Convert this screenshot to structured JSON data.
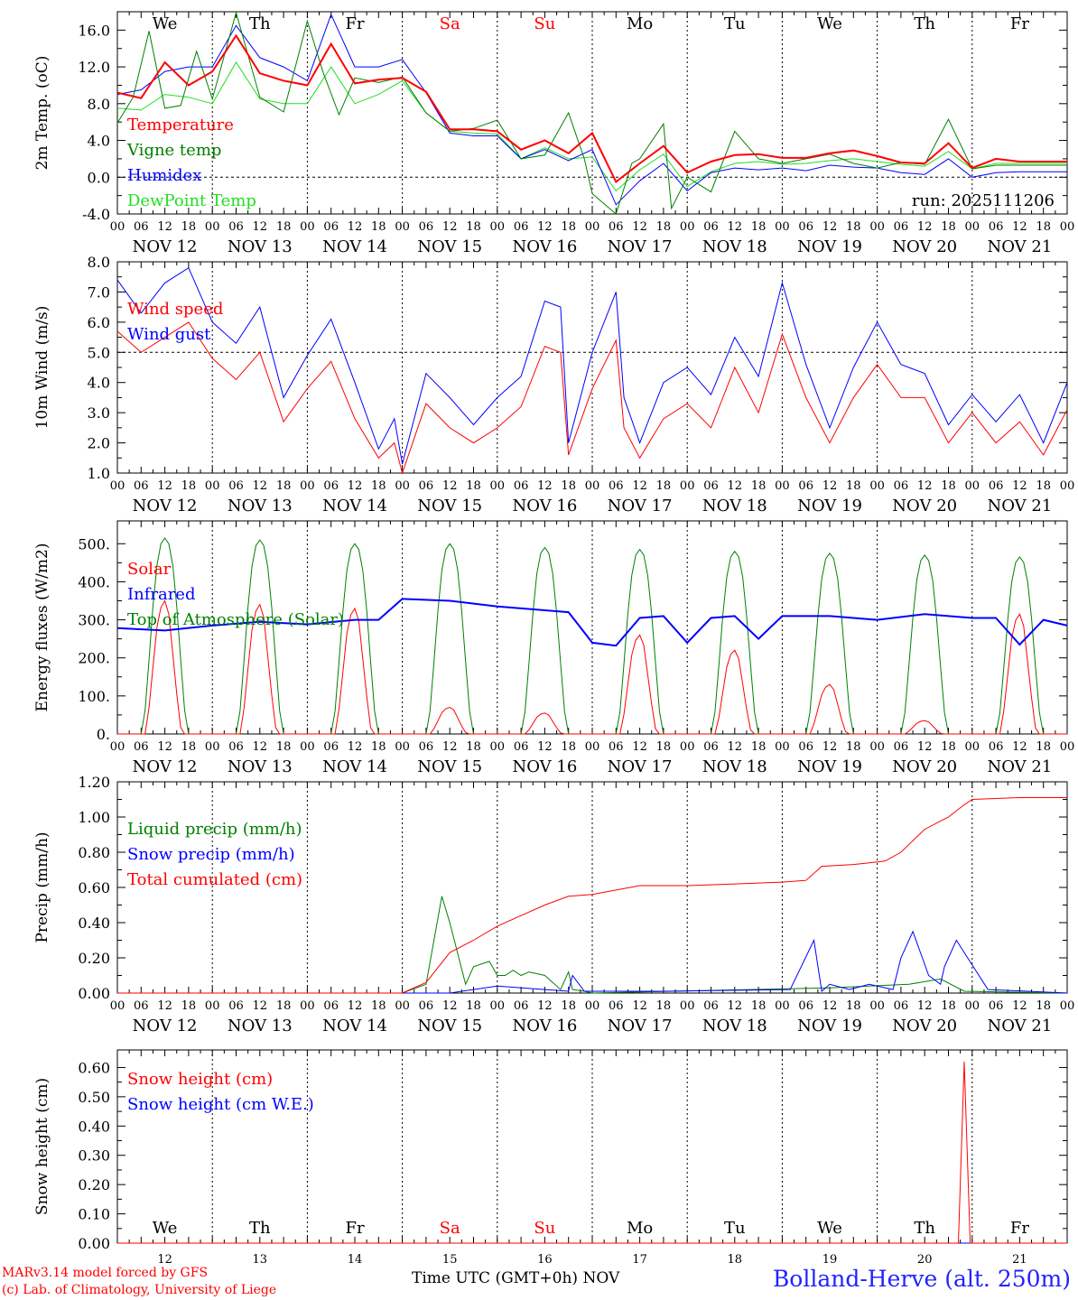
{
  "meta": {
    "run_label": "run: 2025111206",
    "credit_line1": "MARv3.14 model forced by GFS",
    "credit_line2": "(c) Lab. of Climatology, University of Liege",
    "xaxis_title": "Time UTC (GMT+0h)",
    "month_label": "NOV",
    "station": "Bolland-Herve (alt. 250m)"
  },
  "colors": {
    "red": "#ff0000",
    "green": "#008000",
    "blue": "#0000ff",
    "lightgreen": "#22dd22",
    "grid": "#000000"
  },
  "days": [
    "We",
    "Th",
    "Fr",
    "Sa",
    "Su",
    "Mo",
    "Tu",
    "We",
    "Th",
    "Fr"
  ],
  "weekend_days": [
    "Sa",
    "Su"
  ],
  "day_numbers": [
    "12",
    "13",
    "14",
    "15",
    "16",
    "17",
    "18",
    "19",
    "20",
    "21"
  ],
  "date_labels": [
    "NOV 12",
    "NOV 13",
    "NOV 14",
    "NOV 15",
    "NOV 16",
    "NOV 17",
    "NOV 18",
    "NOV 19",
    "NOV 20",
    "NOV 21"
  ],
  "hour_ticks": [
    "00",
    "06",
    "12",
    "18"
  ],
  "chart_data": [
    {
      "type": "line",
      "ylabel": "2m Temp. (oC)",
      "ylim": [
        -4,
        18
      ],
      "yticks": [
        "-4.0",
        "0.0",
        "4.0",
        "8.0",
        "12.0",
        "16.0"
      ],
      "ytick_values": [
        -4,
        0,
        4,
        8,
        12,
        16
      ],
      "dashed_y": 0,
      "series": [
        {
          "name": "Temperature",
          "color": "red",
          "width": 2,
          "t": [
            0,
            6,
            12,
            18,
            24,
            30,
            36,
            42,
            48,
            54,
            60,
            66,
            72,
            78,
            84,
            90,
            96,
            102,
            108,
            114,
            120,
            126,
            132,
            138,
            144,
            150,
            156,
            162,
            168,
            174,
            180,
            186,
            192,
            198,
            204,
            210,
            216,
            222,
            228,
            234,
            240
          ],
          "v": [
            9.2,
            8.6,
            12.5,
            10,
            11.5,
            15.4,
            11.3,
            10.5,
            10,
            14.5,
            10.2,
            10.6,
            10.8,
            9.3,
            5.2,
            5.2,
            5.0,
            3.0,
            4.0,
            2.6,
            4.8,
            -0.5,
            1.5,
            3.4,
            0.5,
            1.7,
            2.4,
            2.5,
            2.1,
            2.1,
            2.6,
            2.9,
            2.3,
            1.6,
            1.5,
            3.7,
            1.0,
            2.0,
            1.7,
            1.7,
            1.7
          ]
        },
        {
          "name": "Vigne temp",
          "color": "green",
          "width": 1,
          "t": [
            0,
            4,
            8,
            12,
            16,
            20,
            24,
            30,
            36,
            42,
            48,
            52,
            56,
            60,
            66,
            72,
            78,
            84,
            90,
            96,
            102,
            108,
            114,
            118,
            120,
            126,
            130,
            132,
            138,
            140,
            144,
            150,
            156,
            162,
            168,
            174,
            180,
            186,
            192,
            198,
            204,
            210,
            216,
            222,
            228,
            234,
            240
          ],
          "v": [
            5.9,
            8.7,
            15.9,
            7.5,
            7.8,
            13.7,
            8.5,
            17.9,
            8.7,
            7.1,
            17.0,
            11.4,
            6.8,
            10.8,
            10.3,
            10.9,
            7.0,
            5.0,
            5.3,
            6.2,
            2.0,
            2.4,
            7.0,
            2.0,
            -1.8,
            -4.0,
            1.5,
            2.0,
            5.8,
            -3.4,
            0.0,
            -1.6,
            5.0,
            2.0,
            1.5,
            2.0,
            2.5,
            1.5,
            1.0,
            1.6,
            1.4,
            6.3,
            0.9,
            1.3,
            1.3,
            1.3,
            1.3
          ]
        },
        {
          "name": "Humidex",
          "color": "blue",
          "width": 1,
          "t": [
            0,
            6,
            12,
            18,
            24,
            30,
            36,
            42,
            48,
            54,
            60,
            66,
            72,
            78,
            84,
            90,
            96,
            102,
            108,
            114,
            120,
            126,
            132,
            138,
            144,
            150,
            156,
            162,
            168,
            174,
            180,
            186,
            192,
            198,
            204,
            210,
            216,
            222,
            228,
            234,
            240
          ],
          "v": [
            9.0,
            9.5,
            11.5,
            12.0,
            12.0,
            16.5,
            13.0,
            12.0,
            10.5,
            17.7,
            12.0,
            12.0,
            12.8,
            9.2,
            4.8,
            4.5,
            4.5,
            2.0,
            3.0,
            1.8,
            3.0,
            -3.0,
            -0.4,
            1.5,
            -1.5,
            0.5,
            1.0,
            0.8,
            1.0,
            0.7,
            1.3,
            1.1,
            1.0,
            0.5,
            0.3,
            2.0,
            0.0,
            0.5,
            0.6,
            0.6,
            0.6
          ]
        },
        {
          "name": "DewPoint Temp",
          "color": "lightgreen",
          "width": 1,
          "t": [
            0,
            6,
            12,
            18,
            24,
            30,
            36,
            42,
            48,
            54,
            60,
            66,
            72,
            78,
            84,
            90,
            96,
            102,
            108,
            114,
            120,
            126,
            132,
            138,
            144,
            150,
            156,
            162,
            168,
            174,
            180,
            186,
            192,
            198,
            204,
            210,
            216,
            222,
            228,
            234,
            240
          ],
          "v": [
            7.5,
            7.3,
            9.0,
            8.7,
            8.0,
            12.5,
            8.5,
            8.0,
            8.0,
            12.0,
            8.0,
            9.0,
            10.5,
            7.0,
            5.0,
            4.8,
            4.7,
            2.0,
            3.2,
            2.0,
            2.2,
            -1.5,
            0.8,
            2.5,
            -1.0,
            0.6,
            1.5,
            1.7,
            1.4,
            1.5,
            1.8,
            2.0,
            1.7,
            1.4,
            1.2,
            2.8,
            0.9,
            1.5,
            1.5,
            1.5,
            1.5
          ]
        }
      ]
    },
    {
      "type": "line",
      "ylabel": "10m Wind (m/s)",
      "ylim": [
        1,
        8
      ],
      "yticks": [
        "1.0",
        "2.0",
        "3.0",
        "4.0",
        "5.0",
        "6.0",
        "7.0",
        "8.0"
      ],
      "ytick_values": [
        1,
        2,
        3,
        4,
        5,
        6,
        7,
        8
      ],
      "dashed_y": 5,
      "series": [
        {
          "name": "Wind speed",
          "color": "red",
          "width": 1,
          "t": [
            0,
            6,
            12,
            18,
            24,
            30,
            36,
            42,
            48,
            54,
            60,
            66,
            70,
            72,
            78,
            84,
            90,
            96,
            102,
            108,
            112,
            114,
            120,
            126,
            128,
            132,
            138,
            144,
            150,
            156,
            162,
            168,
            174,
            180,
            186,
            192,
            198,
            204,
            210,
            216,
            222,
            228,
            234,
            240
          ],
          "v": [
            5.7,
            5.0,
            5.5,
            6.0,
            4.8,
            4.1,
            5.0,
            2.7,
            3.8,
            4.7,
            2.8,
            1.5,
            2.0,
            1.0,
            3.3,
            2.5,
            2.0,
            2.5,
            3.2,
            5.2,
            5.0,
            1.6,
            3.8,
            5.4,
            2.5,
            1.5,
            2.8,
            3.3,
            2.5,
            4.5,
            3.0,
            5.6,
            3.5,
            2.0,
            3.5,
            4.6,
            3.5,
            3.5,
            2.0,
            3.0,
            2.0,
            2.7,
            1.6,
            3.1
          ]
        },
        {
          "name": "Wind gust",
          "color": "blue",
          "width": 1,
          "t": [
            0,
            6,
            12,
            18,
            24,
            30,
            36,
            42,
            48,
            54,
            60,
            66,
            70,
            72,
            78,
            84,
            90,
            96,
            102,
            108,
            112,
            114,
            120,
            126,
            128,
            132,
            138,
            144,
            150,
            156,
            162,
            168,
            174,
            180,
            186,
            192,
            198,
            204,
            210,
            216,
            222,
            228,
            234,
            240
          ],
          "v": [
            7.4,
            6.3,
            7.3,
            7.8,
            6.0,
            5.3,
            6.5,
            3.5,
            4.9,
            6.1,
            4.0,
            1.8,
            2.8,
            1.3,
            4.3,
            3.5,
            2.6,
            3.5,
            4.2,
            6.7,
            6.5,
            2.0,
            5.0,
            7.0,
            3.5,
            2.0,
            4.0,
            4.5,
            3.6,
            5.5,
            4.2,
            7.3,
            4.6,
            2.5,
            4.5,
            6.0,
            4.6,
            4.3,
            2.6,
            3.6,
            2.7,
            3.6,
            2.0,
            4.0
          ]
        }
      ]
    },
    {
      "type": "line",
      "ylabel": "Energy fluxes (W/m2)",
      "ylim": [
        0,
        560
      ],
      "yticks": [
        "0.",
        "100.",
        "200.",
        "300.",
        "400.",
        "500."
      ],
      "ytick_values": [
        0,
        100,
        200,
        300,
        400,
        500
      ],
      "series": [
        {
          "name": "Solar",
          "color": "red",
          "width": 1,
          "peak_hours": [
            12
          ],
          "peaks": [
            350,
            340,
            330,
            70,
            55,
            260,
            220,
            130,
            35,
            315
          ]
        },
        {
          "name": "Infrared",
          "color": "blue",
          "width": 2,
          "t": [
            0,
            12,
            24,
            36,
            48,
            60,
            66,
            72,
            84,
            96,
            108,
            114,
            120,
            126,
            132,
            138,
            144,
            150,
            156,
            162,
            168,
            180,
            192,
            204,
            216,
            222,
            228,
            234,
            240
          ],
          "v": [
            278,
            272,
            285,
            295,
            288,
            300,
            300,
            355,
            350,
            335,
            325,
            320,
            240,
            232,
            305,
            310,
            240,
            305,
            310,
            250,
            310,
            310,
            300,
            315,
            305,
            305,
            235,
            300,
            285
          ]
        },
        {
          "name": "Top of Atmosphere (Solar)",
          "color": "green",
          "width": 1,
          "peaks": [
            515,
            510,
            500,
            500,
            490,
            485,
            480,
            475,
            470,
            465
          ]
        }
      ]
    },
    {
      "type": "line",
      "ylabel": "Precip (mm/h)",
      "ylim": [
        0,
        1.2
      ],
      "yticks": [
        "0.00",
        "0.20",
        "0.40",
        "0.60",
        "0.80",
        "1.00",
        "1.20"
      ],
      "ytick_values": [
        0,
        0.2,
        0.4,
        0.6,
        0.8,
        1.0,
        1.2
      ],
      "series": [
        {
          "name": "Liquid precip (mm/h)",
          "color": "green",
          "width": 1,
          "t": [
            0,
            72,
            78,
            82,
            84,
            88,
            90,
            94,
            96,
            98,
            100,
            102,
            104,
            108,
            112,
            114,
            115,
            118,
            120,
            140,
            160,
            180,
            200,
            208,
            214,
            240
          ],
          "v": [
            0,
            0,
            0.05,
            0.55,
            0.4,
            0.05,
            0.15,
            0.18,
            0.1,
            0.1,
            0.13,
            0.1,
            0.12,
            0.1,
            0.02,
            0.12,
            0.02,
            0.01,
            0,
            0.01,
            0.02,
            0.03,
            0.05,
            0.08,
            0.01,
            0
          ]
        },
        {
          "name": "Snow precip (mm/h)",
          "color": "blue",
          "width": 1,
          "t": [
            0,
            84,
            96,
            108,
            114,
            115,
            118,
            138,
            170,
            176,
            178,
            180,
            185,
            190,
            196,
            198,
            201,
            205,
            208,
            209,
            212,
            220,
            240
          ],
          "v": [
            0,
            0,
            0.04,
            0.02,
            0.01,
            0.1,
            0.01,
            0.01,
            0.02,
            0.3,
            0.01,
            0.05,
            0.02,
            0.05,
            0.02,
            0.2,
            0.35,
            0.1,
            0.05,
            0.15,
            0.3,
            0.02,
            0
          ]
        },
        {
          "name": "Total cumulated (cm)",
          "color": "red",
          "width": 1,
          "t": [
            0,
            72,
            78,
            84,
            90,
            96,
            102,
            108,
            114,
            120,
            132,
            144,
            156,
            168,
            174,
            178,
            186,
            190,
            194,
            198,
            204,
            210,
            214,
            216,
            228,
            240
          ],
          "v": [
            0,
            0,
            0.06,
            0.23,
            0.3,
            0.38,
            0.44,
            0.5,
            0.55,
            0.56,
            0.61,
            0.61,
            0.62,
            0.63,
            0.64,
            0.72,
            0.73,
            0.74,
            0.75,
            0.8,
            0.93,
            1.0,
            1.07,
            1.1,
            1.11,
            1.11
          ]
        }
      ]
    },
    {
      "type": "line",
      "ylabel": "Snow height (cm)",
      "ylim": [
        0,
        0.66
      ],
      "yticks": [
        "0.00",
        "0.10",
        "0.20",
        "0.30",
        "0.40",
        "0.50",
        "0.60"
      ],
      "ytick_values": [
        0,
        0.1,
        0.2,
        0.3,
        0.4,
        0.5,
        0.6
      ],
      "series": [
        {
          "name": "Snow height (cm)",
          "color": "red",
          "width": 1,
          "t": [
            0,
            212.5,
            214,
            215.5,
            240
          ],
          "v": [
            0,
            0,
            0.62,
            0,
            0
          ]
        },
        {
          "name": "Snow height (cm W.E.)",
          "color": "blue",
          "width": 1,
          "t": [
            0,
            240
          ],
          "v": [
            0,
            0
          ]
        }
      ]
    }
  ]
}
